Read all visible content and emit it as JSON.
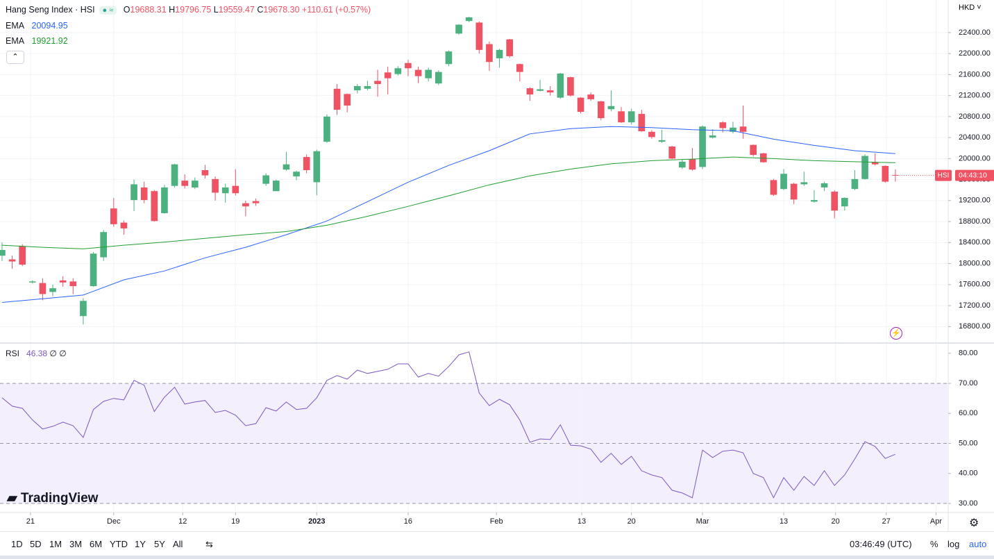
{
  "chart_data": [
    {
      "type": "candlestick",
      "title": "Hang Seng Index · HSI",
      "currency": "HKD",
      "header": {
        "o": "O",
        "open": "19688.31",
        "h": "H",
        "high": "19796.75",
        "l": "L",
        "low": "19559.47",
        "c": "C",
        "close": "19678.30",
        "change": "+110.61 (+0.57%)"
      },
      "up_color": "#4cb17f",
      "down_color": "#ef5363",
      "open": [
        18150,
        18080,
        18330,
        17640,
        17630,
        17460,
        17680,
        17660,
        17000,
        17570,
        18120,
        19050,
        18780,
        19210,
        19450,
        19380,
        18960,
        19480,
        19580,
        19450,
        19780,
        19610,
        19340,
        19480,
        19150,
        19190,
        19520,
        19380,
        19790,
        19660,
        20030,
        19550,
        20320,
        21330,
        21230,
        21300,
        21330,
        21480,
        21640,
        21610,
        21820,
        21690,
        21530,
        21430,
        21800,
        22380,
        22620,
        22590,
        22180,
        21910,
        22270,
        21800,
        21340,
        21290,
        21300,
        21160,
        21550,
        21160,
        21220,
        21090,
        20940,
        20900,
        20690,
        20850,
        20510,
        20320,
        20230,
        19830,
        19990,
        19840,
        20400,
        20690,
        20510,
        20610,
        20260,
        20100,
        19590,
        19420,
        19520,
        19510,
        19180,
        19450,
        19370,
        19090,
        19420,
        19610,
        19930,
        19860,
        19688.31
      ],
      "high": [
        18400,
        18150,
        18370,
        17680,
        17720,
        17600,
        17760,
        17720,
        17340,
        18220,
        18640,
        19250,
        18820,
        19600,
        19560,
        19400,
        19500,
        19900,
        19700,
        19640,
        19880,
        19660,
        19520,
        19800,
        19200,
        19240,
        19720,
        19600,
        20130,
        19770,
        20080,
        20170,
        20840,
        21420,
        21240,
        21420,
        21480,
        21690,
        21750,
        21760,
        21880,
        21750,
        21730,
        21680,
        22060,
        22560,
        22700,
        22610,
        22230,
        22090,
        22280,
        21810,
        21360,
        21500,
        21380,
        21630,
        21560,
        21170,
        21260,
        21100,
        21300,
        20980,
        20950,
        20930,
        20540,
        20550,
        20240,
        19990,
        20200,
        20630,
        20560,
        20710,
        20700,
        21010,
        20270,
        20110,
        19610,
        19800,
        19540,
        19750,
        19400,
        19560,
        19400,
        19260,
        19780,
        20080,
        20100,
        19870,
        19796.75
      ],
      "low": [
        18050,
        17900,
        17950,
        17620,
        17300,
        17380,
        17560,
        17420,
        16840,
        17560,
        18050,
        18700,
        18550,
        19000,
        19150,
        18800,
        18950,
        19450,
        19430,
        19420,
        19620,
        19200,
        19160,
        19300,
        18900,
        19100,
        19480,
        19380,
        19770,
        19590,
        19720,
        19300,
        20300,
        20830,
        20880,
        21240,
        21300,
        21180,
        21220,
        21580,
        21570,
        21440,
        21470,
        21400,
        21760,
        22360,
        22600,
        22000,
        21670,
        21730,
        21920,
        21470,
        21100,
        21280,
        21200,
        21140,
        21180,
        20860,
        21100,
        20730,
        20900,
        20680,
        20650,
        20510,
        20380,
        20300,
        19990,
        19800,
        19770,
        19800,
        20380,
        20500,
        20480,
        20380,
        20040,
        19920,
        19290,
        19400,
        19130,
        19480,
        19160,
        19380,
        18860,
        19010,
        19400,
        19600,
        19870,
        19540,
        19559.47
      ],
      "close": [
        18260,
        18040,
        17980,
        17660,
        17420,
        17530,
        17640,
        17570,
        17290,
        18190,
        18600,
        18750,
        18670,
        19510,
        19210,
        18810,
        19450,
        19890,
        19480,
        19580,
        19680,
        19350,
        19450,
        19340,
        19090,
        19150,
        19680,
        19580,
        19890,
        19750,
        19780,
        20140,
        20800,
        20930,
        21010,
        21380,
        21380,
        21420,
        21530,
        21720,
        21720,
        21570,
        21690,
        21650,
        22040,
        22550,
        22690,
        22070,
        21840,
        22070,
        21950,
        21650,
        21220,
        21320,
        21260,
        21620,
        21200,
        20890,
        21130,
        20770,
        21000,
        20690,
        20900,
        20520,
        20410,
        20350,
        20000,
        19940,
        19790,
        20610,
        20440,
        20580,
        20590,
        20510,
        20070,
        19930,
        19310,
        19710,
        19220,
        19550,
        19210,
        19530,
        19010,
        19250,
        19610,
        20050,
        19890,
        19560,
        19678.3
      ],
      "series": [
        {
          "name": "EMA",
          "color": "#2962ff",
          "x": [
            0,
            4,
            8,
            12,
            16,
            20,
            24,
            28,
            32,
            36,
            40,
            44,
            48,
            52,
            56,
            60,
            64,
            68,
            72,
            76,
            80,
            84,
            88
          ],
          "values": [
            17260,
            17330,
            17400,
            17690,
            17860,
            18110,
            18310,
            18550,
            18810,
            19180,
            19550,
            19870,
            20150,
            20470,
            20570,
            20610,
            20590,
            20550,
            20530,
            20370,
            20250,
            20150,
            20094.95
          ]
        },
        {
          "name": "EMA",
          "color": "#1e9e2e",
          "x": [
            0,
            4,
            8,
            12,
            16,
            20,
            24,
            28,
            32,
            36,
            40,
            44,
            48,
            52,
            56,
            60,
            64,
            68,
            72,
            76,
            80,
            84,
            88
          ],
          "values": [
            18350,
            18310,
            18280,
            18350,
            18410,
            18480,
            18550,
            18610,
            18730,
            18900,
            19090,
            19290,
            19500,
            19670,
            19800,
            19900,
            19960,
            19990,
            20030,
            20000,
            19960,
            19940,
            19921.92
          ]
        }
      ],
      "price_tag": {
        "symbol": "HSI",
        "countdown": "04:43:10"
      },
      "xlim": [
        -0.2,
        93.2
      ],
      "ylim": [
        16500,
        23020
      ],
      "log": false,
      "grid": true,
      "yticks": [
        {
          "value": 16800,
          "label": "16800.00"
        },
        {
          "value": 17200,
          "label": "17200.00"
        },
        {
          "value": 17600,
          "label": "17600.00"
        },
        {
          "value": 18000,
          "label": "18000.00"
        },
        {
          "value": 18400,
          "label": "18400.00"
        },
        {
          "value": 18800,
          "label": "18800.00"
        },
        {
          "value": 19200,
          "label": "19200.00"
        },
        {
          "value": 19600,
          "label": "19600.00"
        },
        {
          "value": 20000,
          "label": "20000.00"
        },
        {
          "value": 20400,
          "label": "20400.00"
        },
        {
          "value": 20800,
          "label": "20800.00"
        },
        {
          "value": 21200,
          "label": "21200.00"
        },
        {
          "value": 21600,
          "label": "21600.00"
        },
        {
          "value": 22000,
          "label": "22000.00"
        },
        {
          "value": 22400,
          "label": "22400.00"
        }
      ]
    },
    {
      "type": "line",
      "title": "RSI",
      "flags": "∅ ∅",
      "color": "#7e57c2",
      "values": [
        65.2,
        62.4,
        61.7,
        57.8,
        54.8,
        55.7,
        57.1,
        55.9,
        52,
        61.3,
        64,
        65,
        64.5,
        71,
        69.4,
        60.6,
        65.4,
        68.7,
        63.1,
        63.8,
        64.3,
        60.3,
        61,
        59.4,
        55.9,
        56.6,
        61.9,
        60.8,
        63.8,
        61.3,
        61.7,
        65.2,
        71,
        72.6,
        71.4,
        74.4,
        73.3,
        74,
        74.7,
        76.5,
        76.5,
        72.1,
        73.3,
        72.4,
        75.6,
        79.5,
        80.5,
        66.8,
        62.6,
        64.7,
        62.9,
        57.8,
        50.4,
        51.5,
        51.3,
        56.2,
        49.4,
        49.2,
        48.1,
        43.7,
        46.7,
        43,
        45.7,
        40.9,
        39.5,
        38.6,
        34.4,
        33.5,
        31.9,
        47.8,
        45.3,
        47.4,
        47.8,
        46.9,
        40,
        38.6,
        31.9,
        38.6,
        34.4,
        39,
        36,
        40.9,
        36,
        39.5,
        44.8,
        50.6,
        49,
        45,
        46.38
      ],
      "levels": [
        30,
        50,
        70
      ],
      "xlim": [
        -0.2,
        93.2
      ],
      "ylim": [
        27,
        83.2
      ],
      "yticks": [
        {
          "value": 30,
          "label": "30.00"
        },
        {
          "value": 40,
          "label": "40.00"
        },
        {
          "value": 50,
          "label": "50.00"
        },
        {
          "value": 60,
          "label": "60.00"
        },
        {
          "value": 70,
          "label": "70.00"
        },
        {
          "value": 80,
          "label": "80.00"
        }
      ],
      "xticks": [
        {
          "value": 2.8,
          "label": "21"
        },
        {
          "value": 11,
          "label": "Dec"
        },
        {
          "value": 17.8,
          "label": "12"
        },
        {
          "value": 23,
          "label": "19"
        },
        {
          "value": 31,
          "label": "2023"
        },
        {
          "value": 40,
          "label": "16"
        },
        {
          "value": 48.7,
          "label": "Feb"
        },
        {
          "value": 57.1,
          "label": "13"
        },
        {
          "value": 62,
          "label": "20"
        },
        {
          "value": 69,
          "label": "Mar"
        },
        {
          "value": 77,
          "label": "13"
        },
        {
          "value": 82.1,
          "label": "20"
        },
        {
          "value": 87.1,
          "label": "27"
        },
        {
          "value": 92,
          "label": "Apr"
        }
      ]
    }
  ],
  "watermark": "TradingView",
  "toolbar": {
    "ranges": [
      "1D",
      "5D",
      "1M",
      "3M",
      "6M",
      "YTD",
      "1Y",
      "5Y",
      "All"
    ],
    "clock": "03:46:49 (UTC)",
    "percent": "%",
    "log": "log",
    "auto": "auto"
  }
}
